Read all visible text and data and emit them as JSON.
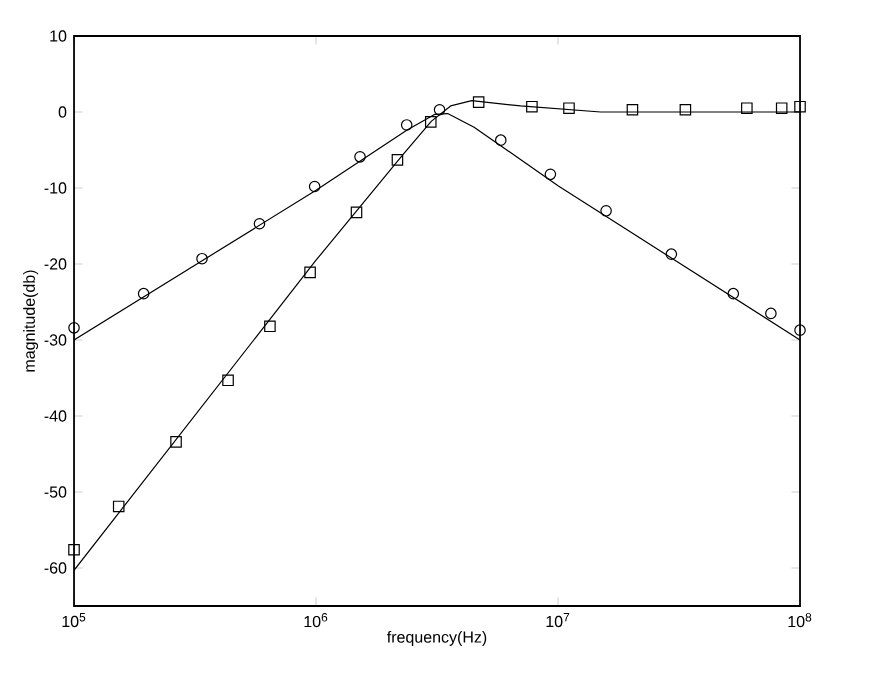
{
  "chart_data": {
    "type": "line",
    "xlabel": "frequency(Hz)",
    "ylabel": "magnitude(db)",
    "log": "x",
    "grid": false,
    "xlim": [
      100000,
      100000000
    ],
    "ylim": [
      -65,
      10
    ],
    "xticks": [
      {
        "value": 100000,
        "label": "10$^{5}$"
      },
      {
        "value": 1000000,
        "label": "10$^{6}$"
      },
      {
        "value": 10000000,
        "label": "10$^{7}$"
      },
      {
        "value": 100000000,
        "label": "10$^{8}$"
      }
    ],
    "yticks": [
      -60,
      -50,
      -40,
      -30,
      -20,
      -10,
      0,
      10
    ],
    "series": [
      {
        "type": "line",
        "marker": "none",
        "line_style": "solid",
        "color": "#000000",
        "x": [
          100000,
          1000000,
          2370000,
          3100000,
          3500000,
          4500000,
          10000000,
          100000000
        ],
        "values": [
          -30,
          -10.3,
          -2.4,
          -0.3,
          -0.2,
          -2.0,
          -9.7,
          -30
        ]
      },
      {
        "type": "line",
        "marker": "none",
        "line_style": "solid",
        "color": "#000000",
        "x": [
          100000,
          1000000,
          2300000,
          3000000,
          3600000,
          4400000,
          7000000,
          15000000,
          100000000
        ],
        "values": [
          -60.3,
          -19.5,
          -5.5,
          -1.2,
          0.8,
          1.5,
          0.8,
          0,
          0
        ]
      },
      {
        "type": "scatter",
        "marker": "circle",
        "color": "#000000",
        "x": [
          100000,
          194000,
          338000,
          584000,
          987000,
          1520000,
          2370000,
          3240000,
          5800000,
          9300000,
          15800000,
          29400000,
          53000000,
          75800000,
          100000000
        ],
        "values": [
          -28.4,
          -23.9,
          -19.3,
          -14.7,
          -9.8,
          -5.9,
          -1.7,
          0.3,
          -3.7,
          -8.2,
          -13.0,
          -18.7,
          -23.9,
          -26.5,
          -28.7
        ]
      },
      {
        "type": "scatter",
        "marker": "square",
        "color": "#000000",
        "x": [
          100000,
          153000,
          264000,
          433000,
          645000,
          945000,
          1470000,
          2170000,
          2980000,
          4700000,
          7800000,
          11100000,
          20300000,
          33600000,
          60300000,
          84000000,
          100000000
        ],
        "values": [
          -57.6,
          -51.9,
          -43.4,
          -35.3,
          -28.2,
          -21.1,
          -13.2,
          -6.3,
          -1.3,
          1.3,
          0.7,
          0.5,
          0.3,
          0.3,
          0.5,
          0.5,
          0.7
        ]
      }
    ]
  }
}
